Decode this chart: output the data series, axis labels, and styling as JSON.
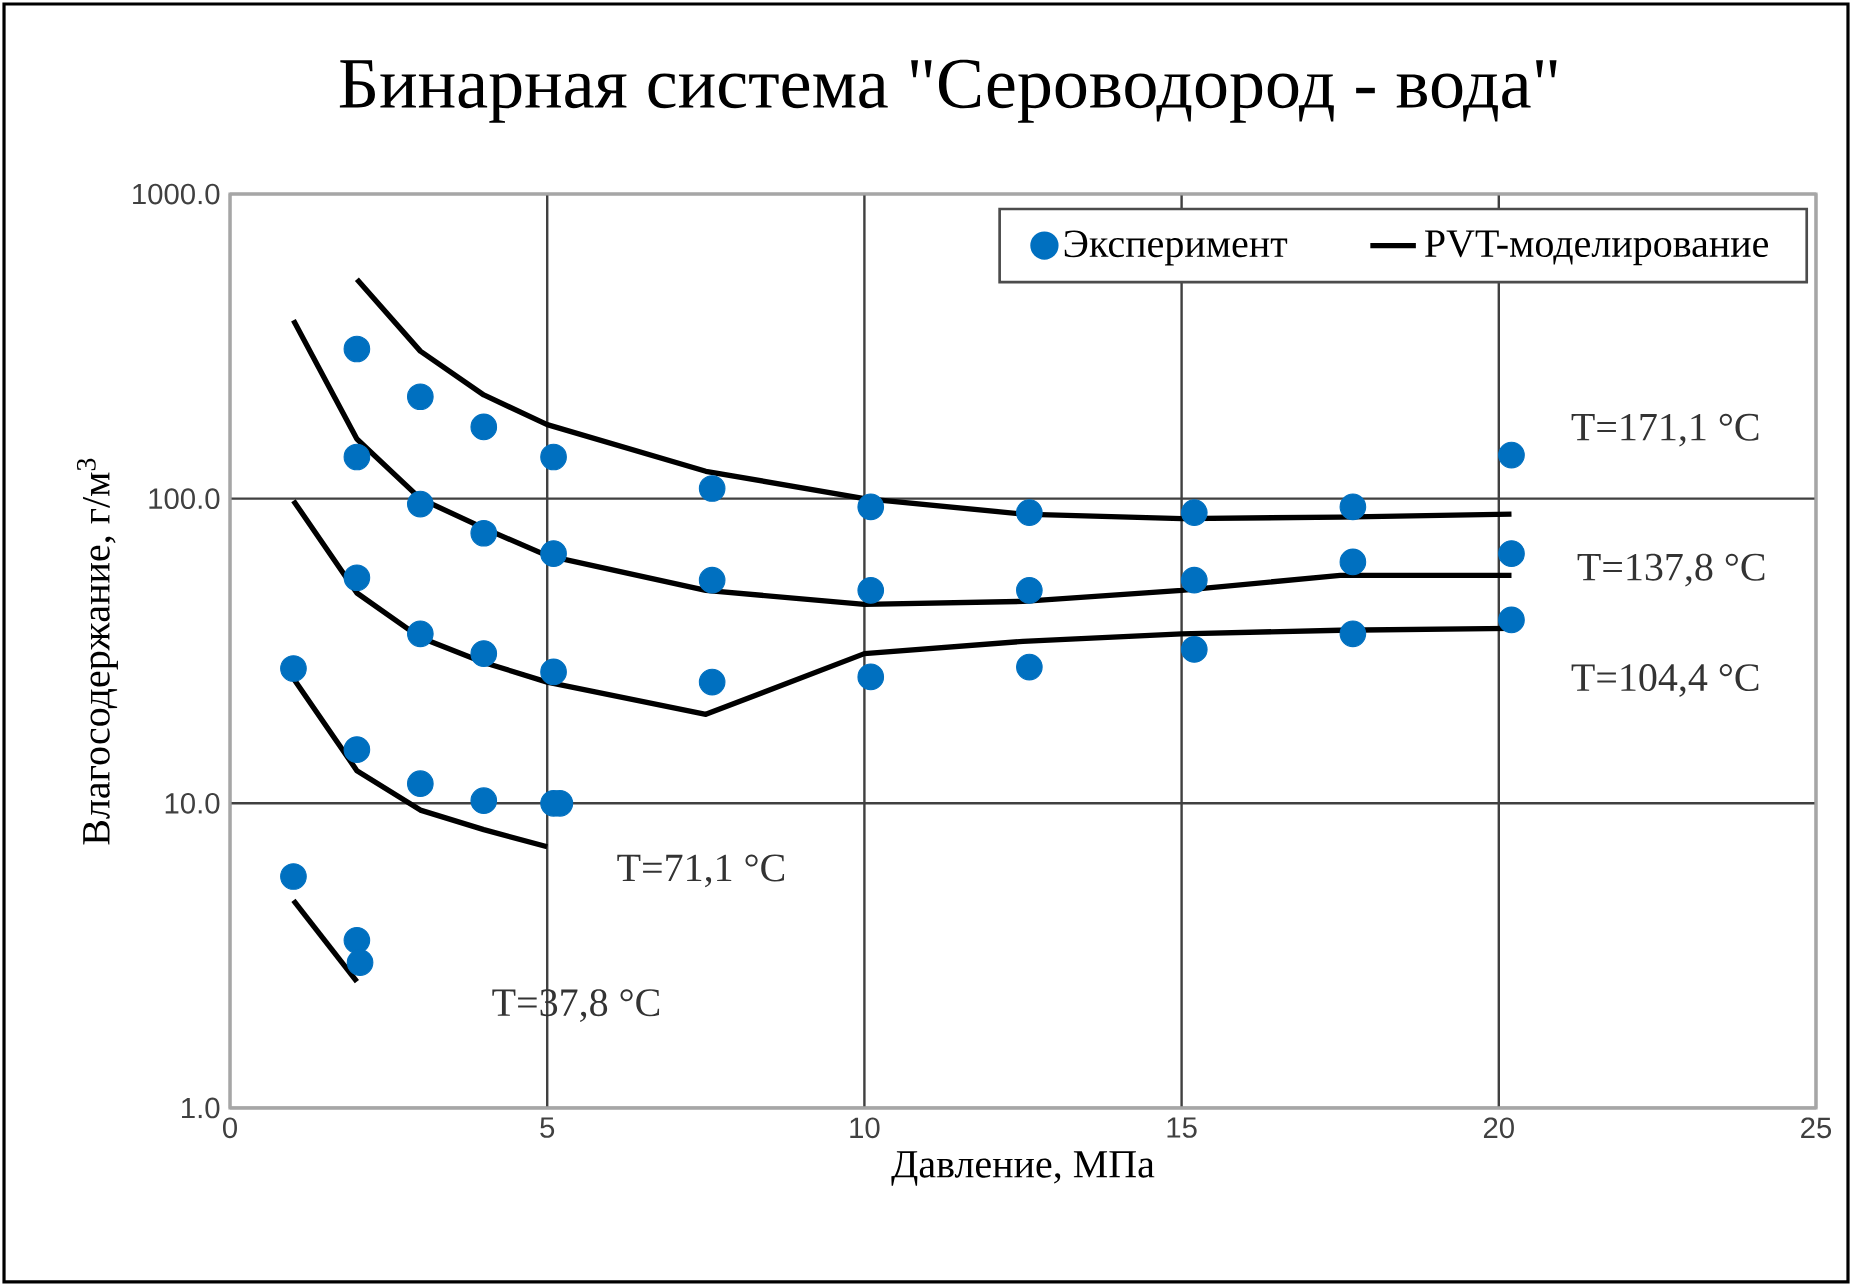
{
  "chart_data": {
    "type": "scatter",
    "title": "Бинарная система \"Сероводород - вода\"",
    "xlabel": "Давление, МПа",
    "ylabel": "Влагосодержание, г/м$^{3}$",
    "xlim": [
      0,
      25
    ],
    "ylim": [
      1,
      1000
    ],
    "xticks": [
      0,
      5,
      10,
      15,
      20,
      25
    ],
    "yticks": [
      {
        "value": 1,
        "label": "1.0"
      },
      {
        "value": 10,
        "label": "10.0"
      },
      {
        "value": 100,
        "label": "100.0"
      },
      {
        "value": 1000,
        "label": "1000.0"
      }
    ],
    "log": "y",
    "grid": true,
    "legend": "top right",
    "annotations": [
      "T=171,1 °C",
      "T=137,8 °C",
      "T=104,4 °C",
      "T=71,1 °C",
      "T=37,8 °C"
    ],
    "series": [
      {
        "name": "Эксперимент",
        "type": "scatter",
        "marker": "circle",
        "color": "#0070c0",
        "x": [
          2,
          3,
          4,
          5.1,
          7.6,
          10.1,
          12.6,
          15.2,
          17.7,
          20.2,
          2,
          3,
          4,
          5.1,
          7.6,
          10.1,
          12.6,
          15.2,
          17.7,
          20.2,
          2,
          3,
          4,
          5.1,
          7.6,
          10.1,
          12.6,
          15.2,
          17.7,
          20.2,
          1,
          2,
          3,
          4,
          5.1,
          5.2,
          1,
          2,
          2.05
        ],
        "values": [
          310,
          216,
          172,
          137,
          108,
          94,
          90,
          90,
          94,
          139,
          137,
          96,
          77,
          66,
          54,
          50,
          50,
          54,
          62,
          66,
          55,
          36,
          31,
          27,
          25,
          26,
          28,
          32,
          36,
          40,
          27.7,
          15,
          11.6,
          10.2,
          10,
          10,
          5.75,
          3.55,
          3.0
        ]
      },
      {
        "name": "PVT-моделирование",
        "type": "line",
        "marker": "none",
        "line_style": "solid",
        "color": "#000000",
        "x": [
          2,
          3,
          4,
          5,
          7.5,
          10,
          12.5,
          15,
          17.5,
          20.2
        ],
        "values": [
          525,
          305,
          219,
          175,
          123,
          100,
          89,
          86,
          87,
          89
        ]
      },
      {
        "type": "line",
        "marker": "none",
        "line_style": "solid",
        "color": "#000000",
        "x": [
          1,
          2,
          3,
          4,
          5,
          7.5,
          10,
          12.5,
          15,
          17.5,
          20.2
        ],
        "values": [
          385,
          157,
          100,
          80,
          65,
          50,
          45,
          46,
          50,
          56,
          56
        ]
      },
      {
        "type": "line",
        "marker": "none",
        "line_style": "solid",
        "color": "#000000",
        "x": [
          1,
          2,
          3,
          4,
          5,
          7.5,
          10,
          12.5,
          15,
          17.5,
          20.2
        ],
        "values": [
          98.5,
          49,
          35,
          29,
          25,
          19.6,
          31,
          34,
          36,
          37,
          37.5
        ]
      },
      {
        "type": "line",
        "marker": "none",
        "line_style": "solid",
        "color": "#000000",
        "x": [
          1,
          2,
          3,
          4,
          5
        ],
        "values": [
          25.7,
          12.8,
          9.5,
          8.2,
          7.2
        ]
      },
      {
        "type": "line",
        "marker": "none",
        "line_style": "solid",
        "color": "#000000",
        "x": [
          1,
          2
        ],
        "values": [
          4.8,
          2.6
        ]
      }
    ]
  }
}
